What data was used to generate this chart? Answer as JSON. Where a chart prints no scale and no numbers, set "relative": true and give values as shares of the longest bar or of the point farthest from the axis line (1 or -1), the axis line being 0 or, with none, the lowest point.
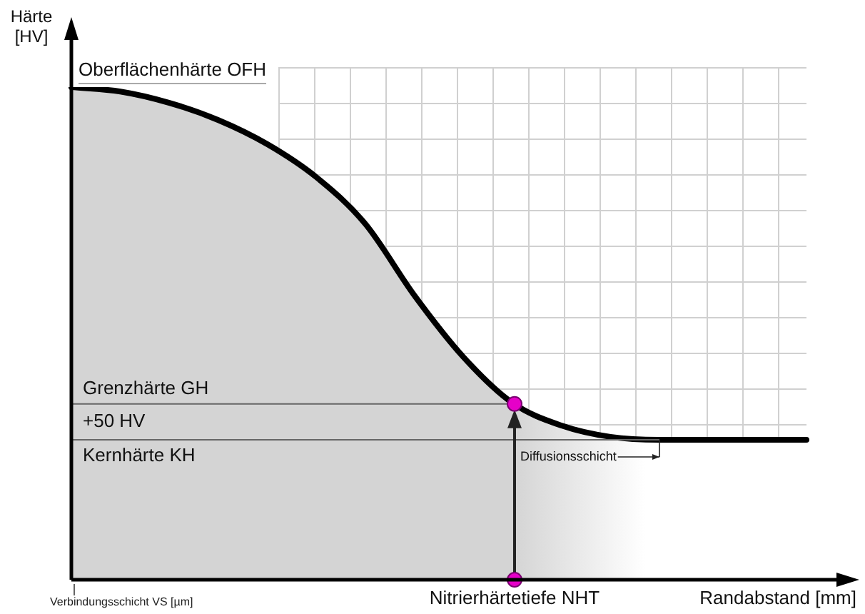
{
  "chart_data": {
    "type": "area",
    "relative": true,
    "ylabel": "Härte\n[HV]",
    "xlabel": "Randabstand [mm]",
    "categories": [
      null,
      null,
      null,
      null,
      null,
      null,
      null,
      null,
      null,
      null,
      null,
      null,
      null,
      null,
      null,
      null
    ],
    "series": [
      {
        "color": "#000000",
        "values": [
          1,
          0.991,
          0.968,
          0.933,
          0.884,
          0.817,
          0.722,
          0.577,
          0.452,
          0.359,
          0.313,
          0.29,
          0.284,
          0.284,
          0.284,
          0.284
        ]
      }
    ],
    "ref_lines": [
      {
        "axis": "y",
        "value": 0.357,
        "label": "Grenzhärte GH"
      },
      {
        "axis": "y",
        "value": 0.284,
        "label": "Kernhärte KH"
      }
    ],
    "annotations": [
      "Oberflächenhärte OFH",
      "+50 HV",
      "Nitrierhärtetiefe NHT",
      "Diffusionsschicht",
      "Verbindungsschicht VS [µm]"
    ],
    "legend": false
  }
}
